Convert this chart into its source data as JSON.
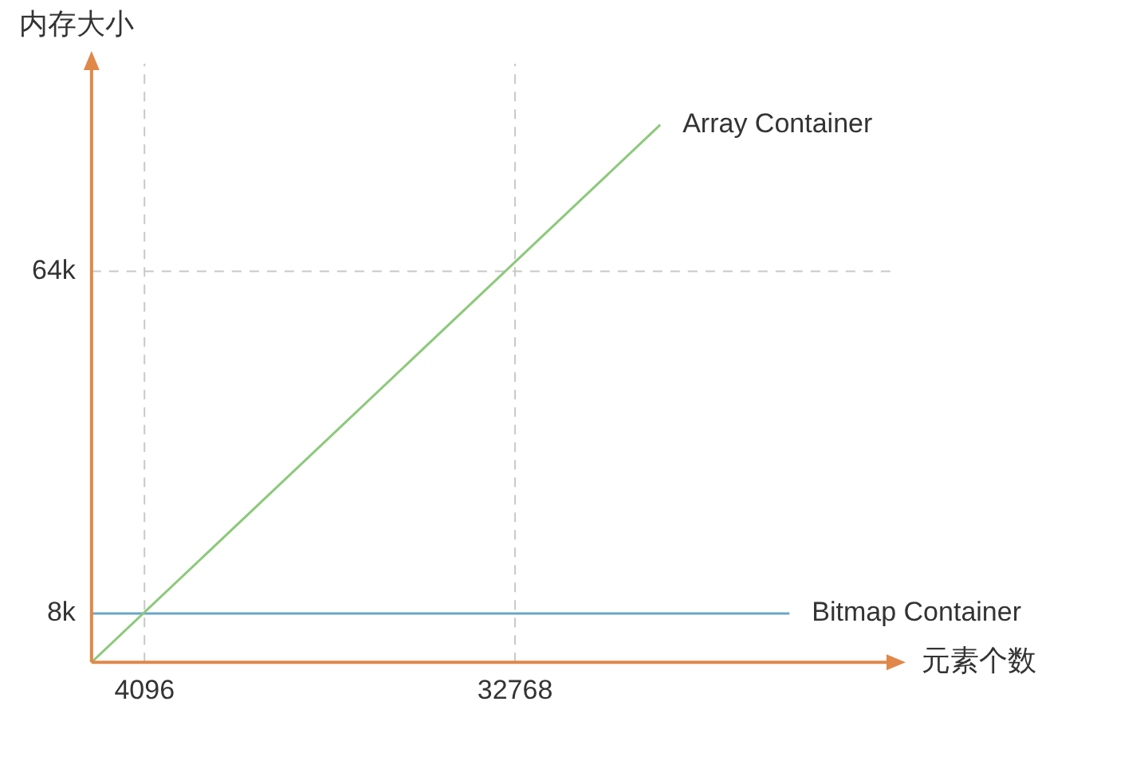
{
  "chart_data": {
    "type": "line",
    "xlabel": "元素个数",
    "ylabel": "内存大小",
    "xlim": [
      0,
      62000
    ],
    "ylim": [
      0,
      98
    ],
    "xticks": [
      4096,
      32768
    ],
    "yticks": [
      {
        "value": 8,
        "label": "8k"
      },
      {
        "value": 64,
        "label": "64k"
      }
    ],
    "series": [
      {
        "name": "Array Container",
        "color": "#8cc97a",
        "x": [
          0,
          44000
        ],
        "values": [
          0,
          88
        ]
      },
      {
        "name": "Bitmap Container",
        "color": "#6aa6c9",
        "x": [
          0,
          54000
        ],
        "values": [
          8,
          8
        ]
      }
    ],
    "ref_lines": [
      {
        "axis": "x",
        "value": 4096,
        "color": "#c8c8c8",
        "line_style": "dashed"
      },
      {
        "axis": "x",
        "value": 32768,
        "color": "#c8c8c8",
        "line_style": "dashed"
      },
      {
        "axis": "y",
        "value": 64,
        "color": "#c8c8c8",
        "line_style": "dashed"
      }
    ],
    "grid": false,
    "legend": false,
    "marker": "none",
    "line_style": "solid"
  }
}
